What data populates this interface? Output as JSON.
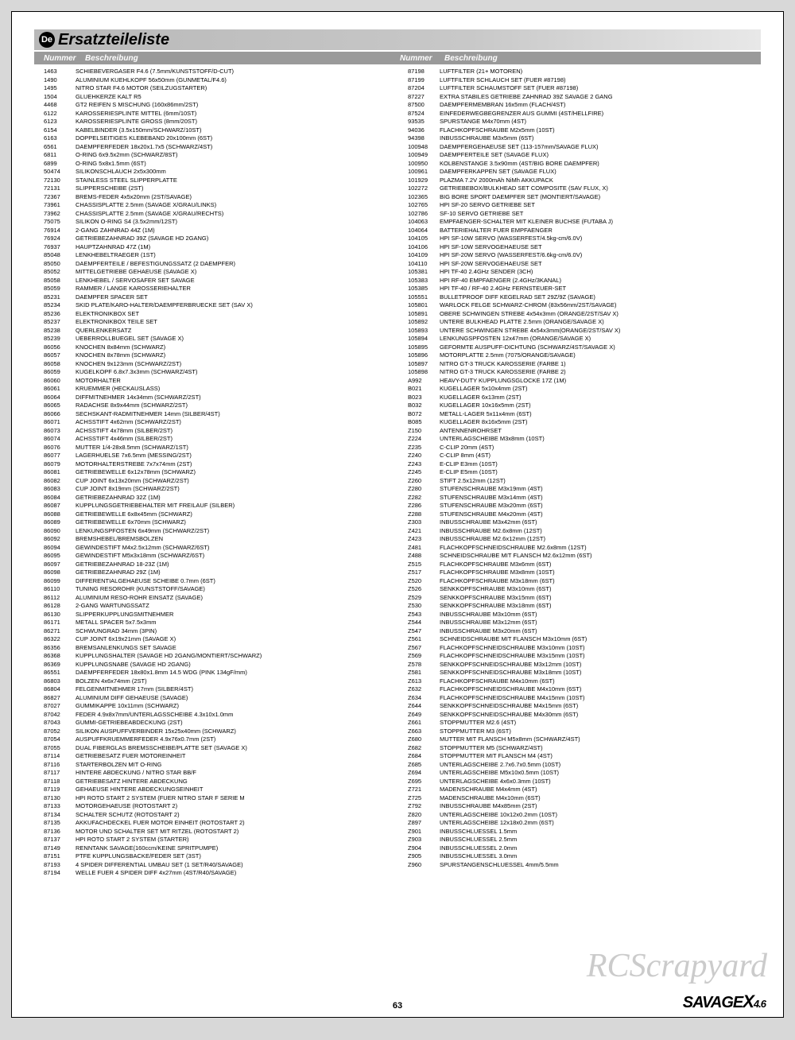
{
  "lang_badge": "De",
  "title": "Ersatzteileliste",
  "header": {
    "num": "Nummer",
    "desc": "Beschreibung"
  },
  "page_number": "63",
  "watermark": "RCScrapyard",
  "logo": {
    "main": "SAVAGE",
    "x": "X",
    "sub": "4.6"
  },
  "colors": {
    "page_bg": "#d8d8d8",
    "title_grad_a": "#b8b8b8",
    "title_grad_b": "#e8e8e8",
    "header_bg": "#9a9a9a"
  },
  "left": [
    [
      "1463",
      "SCHIEBEVERGASER F4.6 (7.5mm/KUNSTSTOFF/D-CUT)"
    ],
    [
      "1490",
      "ALUMINIUM KUEHLKOPF 56x50mm (GUNMETAL/F4.6)"
    ],
    [
      "1495",
      "NITRO STAR F4.6 MOTOR (SEILZUGSTARTER)"
    ],
    [
      "1504",
      "GLUEHKERZE KALT R5"
    ],
    [
      "4468",
      "GT2 REIFEN S MISCHUNG (160x86mm/2ST)"
    ],
    [
      "6122",
      "KAROSSERIESPLINTE MITTEL (6mm/10ST)"
    ],
    [
      "6123",
      "KAROSSERIESPLINTE GROSS (8mm/20ST)"
    ],
    [
      "6154",
      "KABELBINDER (3.5x150mm/SCHWARZ/10ST)"
    ],
    [
      "6163",
      "DOPPELSEITIGES KLEBEBAND 20x100mm (6ST)"
    ],
    [
      "6561",
      "DAEMPFERFEDER 18x20x1.7x5 (SCHWARZ/4ST)"
    ],
    [
      "6811",
      "O-RING 6x9.5x2mm (SCHWARZ/8ST)"
    ],
    [
      "6899",
      "O-RING 5x8x1.5mm (6ST)"
    ],
    [
      "50474",
      "SILIKONSCHLAUCH 2x5x300mm"
    ],
    [
      "72130",
      "STAINLESS STEEL SLIPPERPLATTE"
    ],
    [
      "72131",
      "SLIPPERSCHEIBE (2ST)"
    ],
    [
      "72367",
      "BREMS-FEDER 4x5x20mm (2ST/SAVAGE)"
    ],
    [
      "73961",
      "CHASSISPLATTE 2.5mm (SAVAGE X/GRAU/LINKS)"
    ],
    [
      "73962",
      "CHASSISPLATTE 2.5mm (SAVAGE X/GRAU/RECHTS)"
    ],
    [
      "75075",
      "SILIKON O-RING S4 (3.5x2mm/12ST)"
    ],
    [
      "76914",
      "2-GANG ZAHNRAD 44Z (1M)"
    ],
    [
      "76924",
      "GETRIEBEZAHNRAD 39Z (SAVAGE HD 2GANG)"
    ],
    [
      "76937",
      "HAUPTZAHNRAD 47Z (1M)"
    ],
    [
      "85048",
      "LENKHEBELTRAEGER (1ST)"
    ],
    [
      "85050",
      "DAEMPFERTEILE / BEFESTIGUNGSSATZ (2 DAEMPFER)"
    ],
    [
      "85052",
      "MITTELGETRIEBE GEHAEUSE (SAVAGE X)"
    ],
    [
      "85058",
      "LENKHEBEL / SERVOSAFER SET SAVAGE"
    ],
    [
      "85059",
      "RAMMER / LANGE KAROSSERIEHALTER"
    ],
    [
      "85231",
      "DAEMPFER SPACER SET"
    ],
    [
      "85234",
      "SKID PLATE/KARO-HALTER/DAEMPFERBRUECKE SET (SAV X)"
    ],
    [
      "85236",
      "ELEKTRONIKBOX SET"
    ],
    [
      "85237",
      "ELEKTRONIKBOX TEILE SET"
    ],
    [
      "85238",
      "QUERLENKERSATZ"
    ],
    [
      "85239",
      "UEBERROLLBUEGEL SET (SAVAGE X)"
    ],
    [
      "86056",
      "KNOCHEN 8x84mm (SCHWARZ)"
    ],
    [
      "86057",
      "KNOCHEN 8x78mm (SCHWARZ)"
    ],
    [
      "86058",
      "KNOCHEN 9x123mm (SCHWARZ/2ST)"
    ],
    [
      "86059",
      "KUGELKOPF 6.8x7.3x3mm (SCHWARZ/4ST)"
    ],
    [
      "86060",
      "MOTORHALTER"
    ],
    [
      "86061",
      "KRUEMMER (HECKAUSLASS)"
    ],
    [
      "86064",
      "DIFFMITNEHMER 14x34mm (SCHWARZ/2ST)"
    ],
    [
      "86065",
      "RADACHSE 8x9x44mm (SCHWARZ/2ST)"
    ],
    [
      "86066",
      "SECHSKANT-RADMITNEHMER 14mm (SILBER/4ST)"
    ],
    [
      "86071",
      "ACHSSTIFT 4x62mm (SCHWARZ/2ST)"
    ],
    [
      "86073",
      "ACHSSTIFT 4x78mm (SILBER/2ST)"
    ],
    [
      "86074",
      "ACHSSTIFT 4x46mm (SILBER/2ST)"
    ],
    [
      "86076",
      "MUTTER 1/4-28x8.5mm (SCHWARZ/1ST)"
    ],
    [
      "86077",
      "LAGERHUELSE 7x6.5mm (MESSING/2ST)"
    ],
    [
      "86079",
      "MOTORHALTERSTREBE 7x7x74mm (2ST)"
    ],
    [
      "86081",
      "GETRIEBEWELLE 6x12x78mm (SCHWARZ)"
    ],
    [
      "86082",
      "CUP JOINT 6x13x20mm (SCHWARZ/2ST)"
    ],
    [
      "86083",
      "CUP JOINT 8x19mm (SCHWARZ/2ST)"
    ],
    [
      "86084",
      "GETRIEBEZAHNRAD 32Z (1M)"
    ],
    [
      "86087",
      "KUPPLUNGSGETRIEBEHALTER MIT FREILAUF (SILBER)"
    ],
    [
      "86088",
      "GETRIEBEWELLE 6x8x45mm (SCHWARZ)"
    ],
    [
      "86089",
      "GETRIEBEWELLE 6x70mm (SCHWARZ)"
    ],
    [
      "86090",
      "LENKUNGSPFOSTEN 6x49mm (SCHWARZ/2ST)"
    ],
    [
      "86092",
      "BREMSHEBEL/BREMSBOLZEN"
    ],
    [
      "86094",
      "GEWINDESTIFT M4x2.5x12mm (SCHWARZ/6ST)"
    ],
    [
      "86095",
      "GEWINDESTIFT M5x3x18mm (SCHWARZ/6ST)"
    ],
    [
      "86097",
      "GETRIEBEZAHNRAD 18-23Z (1M)"
    ],
    [
      "86098",
      "GETRIEBEZAHNRAD 29Z (1M)"
    ],
    [
      "86099",
      "DIFFERENTIALGEHAEUSE SCHEIBE 0.7mm (6ST)"
    ],
    [
      "86110",
      "TUNING RESOROHR (KUNSTSTOFF/SAVAGE)"
    ],
    [
      "86112",
      "ALUMINIUM RESO-ROHR EINSATZ (SAVAGE)"
    ],
    [
      "86128",
      "2-GANG WARTUNGSSATZ"
    ],
    [
      "86130",
      "SLIPPERKUPPLUNGSMITNEHMER"
    ],
    [
      "86171",
      "METALL SPACER 5x7.5x3mm"
    ],
    [
      "86271",
      "SCHWUNGRAD 34mm (3PIN)"
    ],
    [
      "86322",
      "CUP JOINT 6x19x21mm (SAVAGE X)"
    ],
    [
      "86356",
      "BREMSANLENKUNGS SET SAVAGE"
    ],
    [
      "86368",
      "KUPPLUNGSHALTER (SAVAGE HD 2GANG/MONTIERT/SCHWARZ)"
    ],
    [
      "86369",
      "KUPPLUNGSNABE (SAVAGE HD 2GANG)"
    ],
    [
      "86551",
      "DAEMPFERFEDER 18x80x1.8mm 14.5 WDG (PINK 134gF/mm)"
    ],
    [
      "86803",
      "BOLZEN 4x6x74mm (2ST)"
    ],
    [
      "86804",
      "FELGENMITNEHMER 17mm (SILBER/4ST)"
    ],
    [
      "86827",
      "ALUMINIUM DIFF GEHAEUSE (SAVAGE)"
    ],
    [
      "87027",
      "GUMMIKAPPE 10x11mm (SCHWARZ)"
    ],
    [
      "87042",
      "FEDER 4.9x8x7mm/UNTERLAGSSCHEIBE 4.3x10x1.0mm"
    ],
    [
      "87043",
      "GUMMI-GETRIEBEABDECKUNG (2ST)"
    ],
    [
      "87052",
      "SILIKON AUSPUFFVERBINDER 15x25x40mm (SCHWARZ)"
    ],
    [
      "87054",
      "AUSPUFFKRUEMMERFEDER 4.9x76x0.7mm (2ST)"
    ],
    [
      "87055",
      "DUAL FIBERGLAS BREMSSCHEIBE/PLATTE SET  (SAVAGE X)"
    ],
    [
      "87114",
      "GETRIEBESATZ FUER MOTOREINHEIT"
    ],
    [
      "87116",
      "STARTERBOLZEN MIT O-RING"
    ],
    [
      "87117",
      "HINTERE ABDECKUNG / NITRO STAR BB/F"
    ],
    [
      "87118",
      "GETRIEBESATZ HINTERE ABDECKUNG"
    ],
    [
      "87119",
      "GEHAEUSE HINTERE ABDECKUNGSEINHEIT"
    ],
    [
      "87130",
      "HPI ROTO START 2 SYSTEM (FUER NITRO STAR F SERIE M"
    ],
    [
      "87133",
      "MOTORGEHAEUSE (ROTOSTART 2)"
    ],
    [
      "87134",
      "SCHALTER SCHUTZ (ROTOSTART 2)"
    ],
    [
      "87135",
      "AKKUFACHDECKEL FUER MOTOR EINHEIT (ROTOSTART 2)"
    ],
    [
      "87136",
      "MOTOR UND SCHALTER SET MIT RITZEL (ROTOSTART 2)"
    ],
    [
      "87137",
      "HPI ROTO START 2 SYSTEM (STARTER)"
    ],
    [
      "87149",
      "RENNTANK SAVAGE(160ccm/KEINE SPRITPUMPE)"
    ],
    [
      "87151",
      "PTFE KUPPLUNGSBACKE/FEDER SET (3ST)"
    ],
    [
      "87193",
      "4 SPIDER DIFFERENTIAL UMBAU SET (1 SET/R40/SAVAGE)"
    ],
    [
      "87194",
      "WELLE FUER 4 SPIDER DIFF 4x27mm (4ST/R40/SAVAGE)"
    ]
  ],
  "right": [
    [
      "87198",
      "LUFTFILTER (21+ MOTOREN)"
    ],
    [
      "87199",
      "LUFTFILTER SCHLAUCH SET (FUER #87198)"
    ],
    [
      "87204",
      "LUFTFILTER SCHAUMSTOFF SET (FUER #87198)"
    ],
    [
      "87227",
      "EXTRA STABILES GETRIEBE ZAHNRAD 39Z SAVAGE 2 GANG"
    ],
    [
      "87500",
      "DAEMPFERMEMBRAN 16x5mm (FLACH/4ST)"
    ],
    [
      "87524",
      "EINFEDERWEGBEGRENZER AUS GUMMI (4ST/HELLFIRE)"
    ],
    [
      "93535",
      "SPURSTANGE M4x70mm (4ST)"
    ],
    [
      "94036",
      "FLACHKOPFSCHRAUBE M2x5mm (10ST)"
    ],
    [
      "94398",
      "INBUSSCHRAUBE M3x5mm (6ST)"
    ],
    [
      "100948",
      "DAEMPFERGEHAEUSE SET (113-157mm/SAVAGE FLUX)"
    ],
    [
      "100949",
      "DAEMPFERTEILE SET (SAVAGE FLUX)"
    ],
    [
      "100950",
      "KOLBENSTANGE 3.5x90mm (4ST/BIG BORE DAEMPFER)"
    ],
    [
      "100961",
      "DAEMPFERKAPPEN SET (SAVAGE FLUX)"
    ],
    [
      "101929",
      "PLAZMA 7.2V 2000mAh NiMh AKKUPACK"
    ],
    [
      "102272",
      "GETRIEBEBOX/BULKHEAD SET COMPOSITE (SAV FLUX, X)"
    ],
    [
      "102365",
      "BIG BORE SPORT DAEMPFER SET (MONTIERT/SAVAGE)"
    ],
    [
      "102765",
      "HPI SF-20 SERVO GETRIEBE SET"
    ],
    [
      "102786",
      "SF-10 SERVO GETRIEBE SET"
    ],
    [
      "104063",
      "EMPFAENGER-SCHALTER MIT KLEINER BUCHSE (FUTABA J)"
    ],
    [
      "104064",
      "BATTERIEHALTER FUER EMPFAENGER"
    ],
    [
      "104105",
      "HPI SF-10W SERVO (WASSERFEST/4.5kg-cm/6.0V)"
    ],
    [
      "104106",
      "HPI SF-10W SERVOGEHAEUSE SET"
    ],
    [
      "104109",
      "HPI SF-20W SERVO (WASSERFEST/6.6kg-cm/6.0V)"
    ],
    [
      "104110",
      "HPI SF-20W SERVOGEHAEUSE SET"
    ],
    [
      "105381",
      "HPI TF-40 2.4GHz SENDER (3CH)"
    ],
    [
      "105383",
      "HPI RF-40 EMPFAENGER (2.4GHz/3KANAL)"
    ],
    [
      "105385",
      "HPI TF-40 / RF-40 2.4GHz FERNSTEUER-SET"
    ],
    [
      "105551",
      "BULLETPROOF DIFF KEGELRAD SET 29Z/9Z (SAVAGE)"
    ],
    [
      "105801",
      "WARLOCK FELGE SCHWARZ-CHROM (83x56mm/2ST/SAVAGE)"
    ],
    [
      "105891",
      "OBERE SCHWINGEN STREBE 4x54x3mm (ORANGE/2ST/SAV X)"
    ],
    [
      "105892",
      "UNTERE BULKHEAD PLATTE 2.5mm (ORANGE/SAVAGE X)"
    ],
    [
      "105893",
      "UNTERE SCHWINGEN STREBE 4x54x3mm(ORANGE/2ST/SAV X)"
    ],
    [
      "105894",
      "LENKUNGSPFOSTEN 12x47mm (ORANGE/SAVAGE X)"
    ],
    [
      "105895",
      "GEFORMTE AUSPUFF-DICHTUNG (SCHWARZ/4ST/SAVAGE X)"
    ],
    [
      "105896",
      "MOTORPLATTE 2.5mm (7075/ORANGE/SAVAGE)"
    ],
    [
      "105897",
      "NITRO GT-3 TRUCK KAROSSERIE (FARBE 1)"
    ],
    [
      "105898",
      "NITRO GT-3 TRUCK KAROSSERIE (FARBE 2)"
    ],
    [
      "A992",
      "HEAVY-DUTY KUPPLUNGSGLOCKE 17Z (1M)"
    ],
    [
      "B021",
      "KUGELLAGER 5x10x4mm (2ST)"
    ],
    [
      "B023",
      "KUGELLAGER 6x13mm (2ST)"
    ],
    [
      "B032",
      "KUGELLAGER 10x16x5mm (2ST)"
    ],
    [
      "B072",
      "METALL-LAGER 5x11x4mm (6ST)"
    ],
    [
      "B085",
      "KUGELLAGER 8x16x5mm (2ST)"
    ],
    [
      "Z150",
      "ANTENNENROHRSET"
    ],
    [
      "Z224",
      "UNTERLAGSCHEIBE M3x8mm (10ST)"
    ],
    [
      "Z235",
      "C-CLIP 20mm (4ST)"
    ],
    [
      "Z240",
      "C-CLIP 8mm (4ST)"
    ],
    [
      "Z243",
      "E-CLIP E3mm (10ST)"
    ],
    [
      "Z245",
      "E-CLIP E5mm (10ST)"
    ],
    [
      "Z260",
      "STIFT 2.5x12mm (12ST)"
    ],
    [
      "Z280",
      "STUFENSCHRAUBE M3x19mm (4ST)"
    ],
    [
      "Z282",
      "STUFENSCHRAUBE M3x14mm (4ST)"
    ],
    [
      "Z286",
      "STUFENSCHRAUBE M3x20mm (6ST)"
    ],
    [
      "Z288",
      "STUFENSCHRAUBE M4x20mm (4ST)"
    ],
    [
      "Z303",
      "INBUSSCHRAUBE M3x42mm (6ST)"
    ],
    [
      "Z421",
      "INBUSSCHRAUBE M2.6x8mm (12ST)"
    ],
    [
      "Z423",
      "INBUSSCHRAUBE M2.6x12mm (12ST)"
    ],
    [
      "Z481",
      "FLACHKOPFSCHNEIDSCHRAUBE M2.6x8mm (12ST)"
    ],
    [
      "Z488",
      "SCHNEIDSCHRAUBE MIT FLANSCH M2.6x12mm (6ST)"
    ],
    [
      "Z515",
      "FLACHKOPFSCHRAUBE M3x6mm (6ST)"
    ],
    [
      "Z517",
      "FLACHKOPFSCHRAUBE M3x8mm (10ST)"
    ],
    [
      "Z520",
      "FLACHKOPFSCHRAUBE M3x18mm (6ST)"
    ],
    [
      "Z526",
      "SENKKOPFSCHRAUBE M3x10mm (6ST)"
    ],
    [
      "Z529",
      "SENKKOPFSCHRAUBE M3x15mm (6ST)"
    ],
    [
      "Z530",
      "SENKKOPFSCHRAUBE M3x18mm (6ST)"
    ],
    [
      "Z543",
      "INBUSSCHRAUBE M3x10mm (6ST)"
    ],
    [
      "Z544",
      "INBUSSCHRAUBE M3x12mm (6ST)"
    ],
    [
      "Z547",
      "INBUSSCHRAUBE M3x20mm (6ST)"
    ],
    [
      "Z561",
      "SCHNEIDSCHRAUBE MIT FLANSCH M3x10mm (6ST)"
    ],
    [
      "Z567",
      "FLACHKOPFSCHNEIDSCHRAUBE M3x10mm (10ST)"
    ],
    [
      "Z569",
      "FLACHKOPFSCHNEIDSCHRAUBE M3x15mm (10ST)"
    ],
    [
      "Z578",
      "SENKKOPFSCHNEIDSCHRAUBE M3x12mm (10ST)"
    ],
    [
      "Z581",
      "SENKKOPFSCHNEIDSCHRAUBE M3x18mm (10ST)"
    ],
    [
      "Z613",
      "FLACHKOPFSCHRAUBE M4x10mm (6ST)"
    ],
    [
      "Z632",
      "FLACHKOPFSCHNEIDSCHRAUBE M4x10mm (6ST)"
    ],
    [
      "Z634",
      "FLACHKOPFSCHNEIDSCHRAUBE M4x15mm (10ST)"
    ],
    [
      "Z644",
      "SENKKOPFSCHNEIDSCHRAUBE M4x15mm (6ST)"
    ],
    [
      "Z649",
      "SENKKOPFSCHNEIDSCHRAUBE M4x30mm (6ST)"
    ],
    [
      "Z661",
      "STOPPMUTTER M2.6 (4ST)"
    ],
    [
      "Z663",
      "STOPPMUTTER M3 (6ST)"
    ],
    [
      "Z680",
      "MUTTER MIT FLANSCH M5x8mm (SCHWARZ/4ST)"
    ],
    [
      "Z682",
      "STOPPMUTTER M5 (SCHWARZ/4ST)"
    ],
    [
      "Z684",
      "STOPPMUTTER MIT FLANSCH M4 (4ST)"
    ],
    [
      "Z685",
      "UNTERLAGSCHEIBE 2.7x6.7x0.5mm (10ST)"
    ],
    [
      "Z694",
      "UNTERLAGSCHEIBE M5x10x0.5mm (10ST)"
    ],
    [
      "Z695",
      "UNTERLAGSCHEIBE 4x6x0.3mm (10ST)"
    ],
    [
      "Z721",
      "MADENSCHRAUBE M4x4mm (4ST)"
    ],
    [
      "Z725",
      "MADENSCHRAUBE M4x10mm (6ST)"
    ],
    [
      "Z792",
      "INBUSSCHRAUBE M4x85mm (2ST)"
    ],
    [
      "Z820",
      "UNTERLAGSCHEIBE 10x12x0.2mm (10ST)"
    ],
    [
      "Z897",
      "UNTERLAGSCHEIBE 12x18x0.2mm (6ST)"
    ],
    [
      "Z901",
      "INBUSSCHLUESSEL 1.5mm"
    ],
    [
      "Z903",
      "INBUSSCHLUESSEL 2.5mm"
    ],
    [
      "Z904",
      "INBUSSCHLUESSEL 2.0mm"
    ],
    [
      "Z905",
      "INBUSSCHLUESSEL 3.0mm"
    ],
    [
      "Z960",
      "SPURSTANGENSCHLUESSEL 4mm/5.5mm"
    ]
  ]
}
